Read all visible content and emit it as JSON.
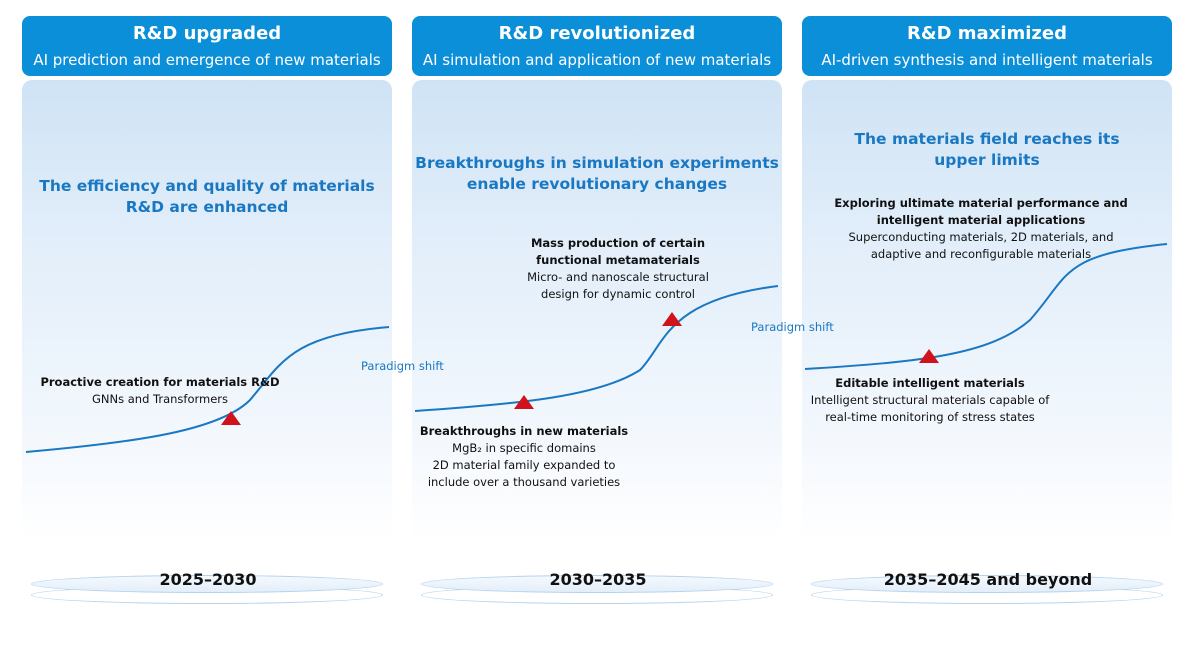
{
  "stages": [
    {
      "title": "R&D upgraded",
      "subtitle": "AI prediction and emergence of new materials",
      "headline_line1": "The efficiency and quality of materials",
      "headline_line2": "R&D are enhanced",
      "milestones": [
        {
          "title": "Proactive creation for materials R&D",
          "lines": [
            "GNNs and Transformers"
          ]
        }
      ],
      "period": "2025–2030"
    },
    {
      "title": "R&D revolutionized",
      "subtitle": "AI simulation and application of new materials",
      "headline_line1": "Breakthroughs in simulation experiments",
      "headline_line2": "enable revolutionary changes",
      "milestones": [
        {
          "title": "Breakthroughs in new materials",
          "lines": [
            "MgB₂ in specific domains",
            "2D material family expanded to",
            "include over a thousand varieties"
          ]
        },
        {
          "title": "Mass production of certain",
          "title2": "functional metamaterials",
          "lines": [
            "Micro- and nanoscale structural",
            "design for dynamic control"
          ]
        }
      ],
      "period": "2030–2035"
    },
    {
      "title": "R&D maximized",
      "subtitle": "AI-driven synthesis and intelligent materials",
      "headline_line1": "The materials field reaches its",
      "headline_line2": "upper limits",
      "milestones": [
        {
          "title": "Editable intelligent materials",
          "lines": [
            "Intelligent structural materials capable of",
            "real-time monitoring of stress states"
          ]
        },
        {
          "title": "Exploring ultimate material performance and",
          "title2": "intelligent material applications",
          "lines": [
            "Superconducting materials, 2D materials, and",
            "adaptive and reconfigurable materials"
          ]
        }
      ],
      "period": "2035–2045 and beyond"
    }
  ],
  "transitions": [
    "Paradigm shift",
    "Paradigm shift"
  ],
  "colors": {
    "header": "#0b8fd8",
    "headline": "#1a78c2",
    "curve": "#1a78c2",
    "marker": "#d0121b"
  }
}
